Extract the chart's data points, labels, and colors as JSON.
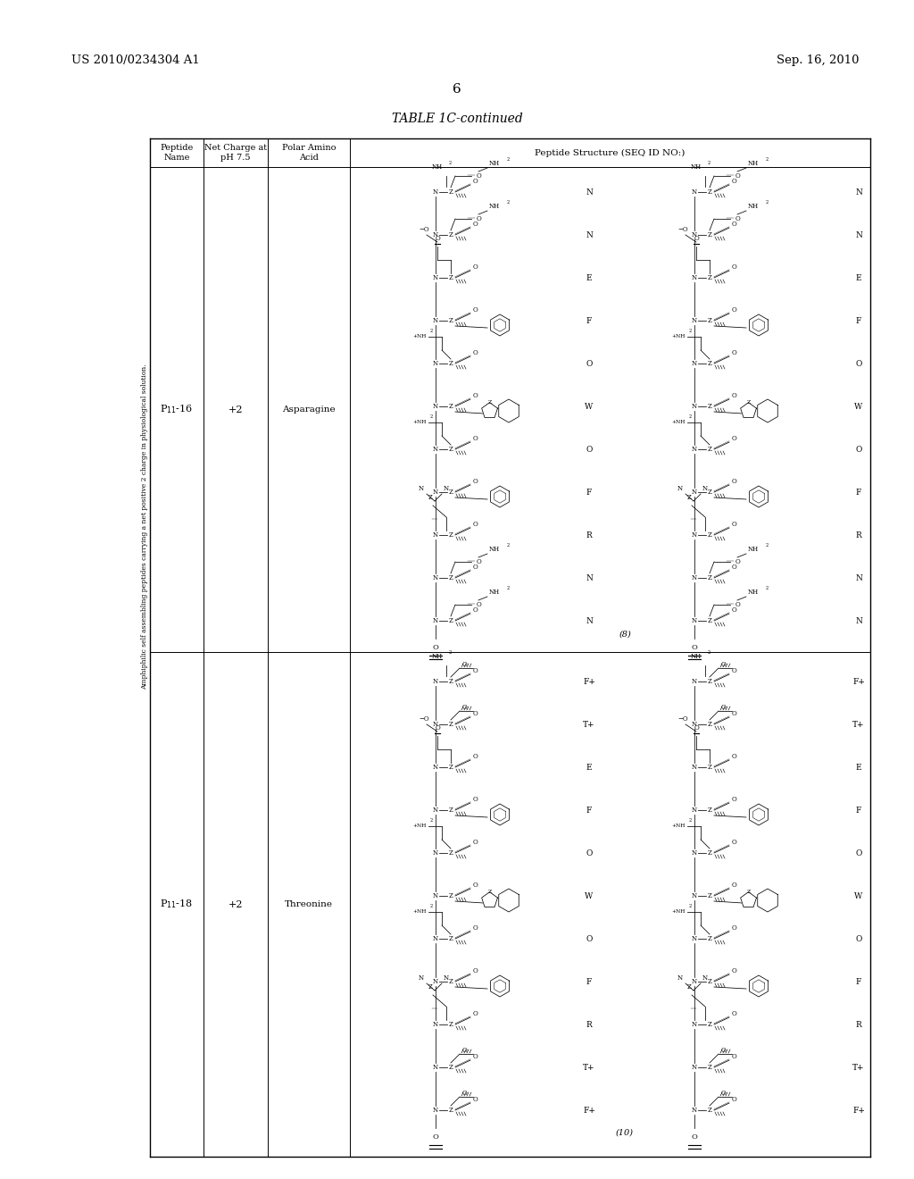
{
  "bg_color": "#ffffff",
  "header_left": "US 2010/0234304 A1",
  "header_right": "Sep. 16, 2010",
  "page_number": "6",
  "table_title": "TABLE 1C-continued",
  "table_subtitle": "Amphiphilic self assembling peptides carrying a net positive 2 charge in physiological solution.",
  "col_header_peptide": "Peptide\nName",
  "col_header_charge": "Net Charge at\npH 7.5",
  "col_header_polar": "Polar Amino\nAcid",
  "col_header_structure": "Peptide Structure (SEQ ID NO:)",
  "row1_peptide": "P$_{11}$-16",
  "row1_charge": "+2",
  "row1_polar": "Asparagine",
  "row1_seq": "(8)",
  "row2_peptide": "P$_{11}$-18",
  "row2_charge": "+2",
  "row2_polar": "Threonine",
  "row2_seq": "(10)",
  "row1_right_labels": [
    "N",
    "N",
    "E",
    "F",
    "O",
    "W",
    "O",
    "F",
    "R",
    "N",
    "N"
  ],
  "row2_right_labels": [
    "F+",
    "T+",
    "E",
    "F",
    "O",
    "W",
    "O",
    "F",
    "R",
    "T+",
    "F+"
  ]
}
